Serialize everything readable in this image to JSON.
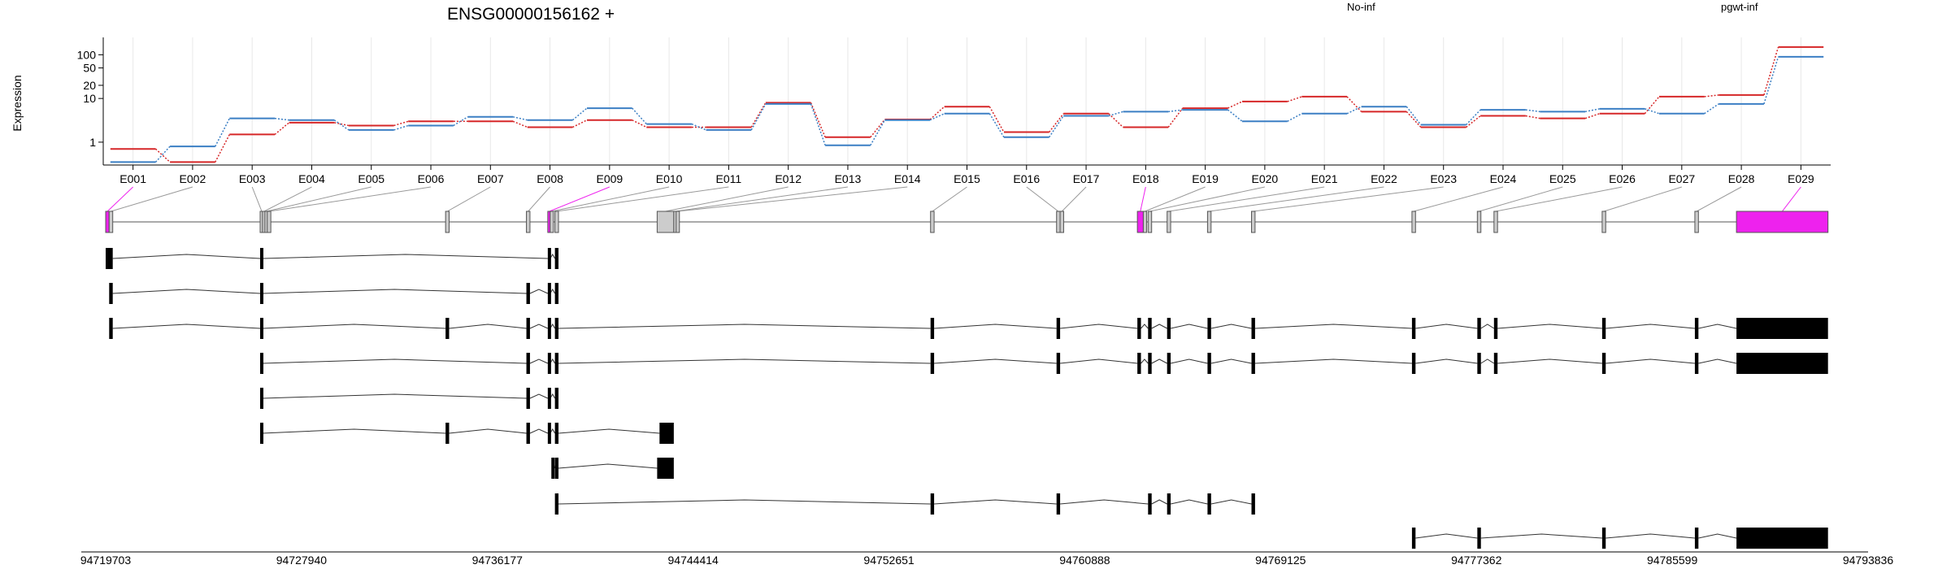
{
  "chart_data": {
    "type": "line",
    "title": "ENSG00000156162 +",
    "ylabel": "Expression",
    "y_scale": "log",
    "y_ticks": [
      "1",
      "10",
      "20",
      "50",
      "100"
    ],
    "ylim": [
      0.3,
      250
    ],
    "grid": true,
    "legend_placement": "top",
    "series": [
      {
        "name": "No-inf",
        "color": "#d62728",
        "values": [
          0.7,
          0.35,
          1.5,
          2.8,
          2.4,
          3.0,
          3.0,
          2.2,
          3.2,
          2.2,
          2.2,
          8.0,
          1.3,
          3.3,
          6.5,
          1.7,
          4.5,
          2.2,
          6.0,
          8.5,
          11.0,
          5.0,
          2.2,
          4.0,
          3.5,
          4.5,
          11.0,
          12.0,
          150.0
        ]
      },
      {
        "name": "pgwt-inf",
        "color": "#3b7fc4",
        "values": [
          0.35,
          0.8,
          3.5,
          3.2,
          1.9,
          2.4,
          3.8,
          3.2,
          6.0,
          2.6,
          1.9,
          7.5,
          0.85,
          3.2,
          4.5,
          1.3,
          4.0,
          5.0,
          5.5,
          3.0,
          4.5,
          6.5,
          2.5,
          5.5,
          5.0,
          5.8,
          4.5,
          7.5,
          90.0
        ]
      }
    ],
    "exons": [
      "E001",
      "E002",
      "E003",
      "E004",
      "E005",
      "E006",
      "E007",
      "E008",
      "E009",
      "E010",
      "E011",
      "E012",
      "E013",
      "E014",
      "E015",
      "E016",
      "E017",
      "E018",
      "E019",
      "E020",
      "E021",
      "E022",
      "E023",
      "E024",
      "E025",
      "E026",
      "E027",
      "E028",
      "E029"
    ],
    "exon_coords": [
      [
        94719703,
        94719850
      ],
      [
        94719850,
        94720000
      ],
      [
        94726200,
        94726300
      ],
      [
        94726300,
        94726400
      ],
      [
        94726400,
        94726500
      ],
      [
        94726500,
        94726650
      ],
      [
        94734000,
        94734150
      ],
      [
        94737400,
        94737550
      ],
      [
        94738300,
        94738400
      ],
      [
        94738400,
        94738500
      ],
      [
        94738600,
        94738750
      ],
      [
        94742900,
        94743600
      ],
      [
        94743600,
        94743700
      ],
      [
        94743700,
        94743750
      ],
      [
        94754400,
        94754550
      ],
      [
        94759700,
        94759850
      ],
      [
        94759850,
        94760000
      ],
      [
        94763100,
        94763350
      ],
      [
        94763350,
        94763450
      ],
      [
        94763550,
        94763700
      ],
      [
        94764350,
        94764500
      ],
      [
        94766050,
        94766200
      ],
      [
        94767900,
        94768050
      ],
      [
        94774650,
        94774800
      ],
      [
        94777400,
        94777550
      ],
      [
        94778100,
        94778250
      ],
      [
        94782650,
        94782800
      ],
      [
        94786550,
        94786700
      ],
      [
        94788300,
        94792150
      ]
    ],
    "highlighted_exons": [
      "E001",
      "E009",
      "E018",
      "E029"
    ],
    "highlight_color": "#ee22ee",
    "genomic_range": [
      94719703,
      94793836
    ],
    "genomic_ticks": [
      "94719703",
      "94727940",
      "94736177",
      "94744414",
      "94752651",
      "94760888",
      "94769125",
      "94777362",
      "94785599",
      "94793836"
    ],
    "transcripts": [
      [
        [
          94719703,
          94720000
        ],
        [
          94726200,
          94726300
        ],
        [
          94738300,
          94738400
        ],
        [
          94738600,
          94738750
        ]
      ],
      [
        [
          94719850,
          94720000
        ],
        [
          94726200,
          94726300
        ],
        [
          94737400,
          94737550
        ],
        [
          94738300,
          94738400
        ],
        [
          94738600,
          94738750
        ]
      ],
      [
        [
          94719850,
          94720000
        ],
        [
          94726200,
          94726300
        ],
        [
          94734000,
          94734150
        ],
        [
          94737400,
          94737550
        ],
        [
          94738300,
          94738400
        ],
        [
          94738600,
          94738750
        ],
        [
          94754400,
          94754550
        ],
        [
          94759700,
          94759850
        ],
        [
          94763100,
          94763250
        ],
        [
          94763550,
          94763700
        ],
        [
          94764350,
          94764500
        ],
        [
          94766050,
          94766200
        ],
        [
          94767900,
          94768050
        ],
        [
          94774650,
          94774800
        ],
        [
          94777400,
          94777550
        ],
        [
          94778100,
          94778250
        ],
        [
          94782650,
          94782800
        ],
        [
          94786550,
          94786700
        ],
        [
          94788300,
          94792150
        ]
      ],
      [
        [
          94726200,
          94726300
        ],
        [
          94737400,
          94737550
        ],
        [
          94738300,
          94738400
        ],
        [
          94738600,
          94738750
        ],
        [
          94754400,
          94754550
        ],
        [
          94759700,
          94759850
        ],
        [
          94763100,
          94763250
        ],
        [
          94763550,
          94763700
        ],
        [
          94764350,
          94764500
        ],
        [
          94766050,
          94766200
        ],
        [
          94767900,
          94768050
        ],
        [
          94774650,
          94774800
        ],
        [
          94777400,
          94777550
        ],
        [
          94778100,
          94778250
        ],
        [
          94782650,
          94782800
        ],
        [
          94786550,
          94786700
        ],
        [
          94788300,
          94792150
        ]
      ],
      [
        [
          94726200,
          94726300
        ],
        [
          94737400,
          94737550
        ],
        [
          94738300,
          94738400
        ],
        [
          94738600,
          94738750
        ]
      ],
      [
        [
          94726200,
          94726300
        ],
        [
          94734000,
          94734150
        ],
        [
          94737400,
          94737550
        ],
        [
          94738300,
          94738400
        ],
        [
          94738600,
          94738750
        ],
        [
          94743000,
          94743600
        ]
      ],
      [
        [
          94738450,
          94738500
        ],
        [
          94738600,
          94738750
        ],
        [
          94742900,
          94743600
        ]
      ],
      [
        [
          94738600,
          94738750
        ],
        [
          94754400,
          94754550
        ],
        [
          94759700,
          94759850
        ],
        [
          94763550,
          94763700
        ],
        [
          94764350,
          94764500
        ],
        [
          94766050,
          94766200
        ],
        [
          94767900,
          94768050
        ]
      ],
      [
        [
          94774650,
          94774800
        ],
        [
          94777400,
          94777550
        ],
        [
          94782650,
          94782800
        ],
        [
          94786550,
          94786700
        ],
        [
          94788300,
          94792150
        ]
      ]
    ]
  }
}
